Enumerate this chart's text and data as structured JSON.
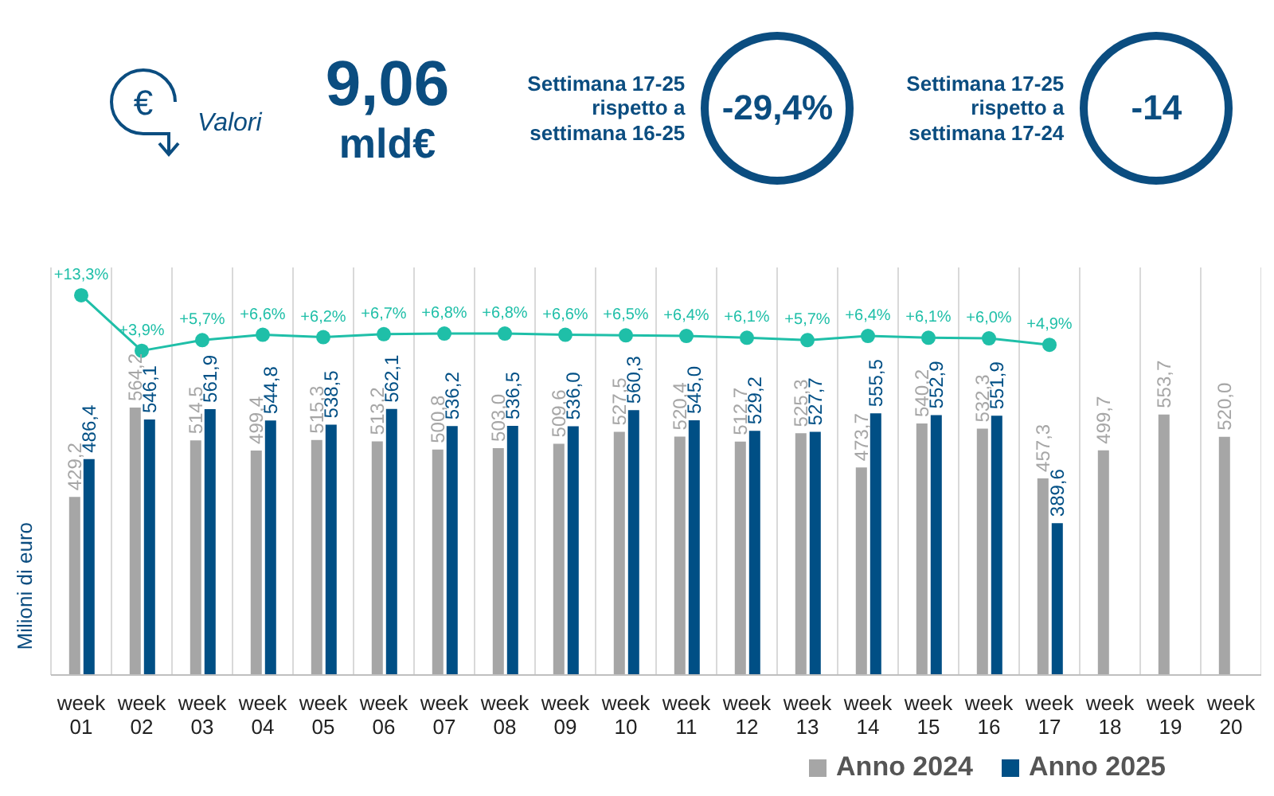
{
  "chart_data": {
    "type": "bar",
    "ylabel": "Milioni di euro",
    "annotations": [
      "Valori",
      "9,06",
      "mld€",
      "Settimana 17-25 rispetto a settimana 16-25",
      "-29,4%",
      "Settimana 17-25 rispetto a settimana 17-24",
      "-14",
      "€"
    ],
    "categories": [
      "week 01",
      "week 02",
      "week 03",
      "week 04",
      "week 05",
      "week 06",
      "week 07",
      "week 08",
      "week 09",
      "week 10",
      "week 11",
      "week 12",
      "week 13",
      "week 14",
      "week 15",
      "week 16",
      "week 17",
      "week 18",
      "week 19",
      "week 20"
    ],
    "series": [
      {
        "name": "Anno 2024",
        "color": "#a6a6a6",
        "values": [
          429.2,
          564.2,
          514.5,
          499.4,
          515.3,
          513.2,
          500.8,
          503.0,
          509.6,
          527.5,
          520.4,
          512.7,
          525.3,
          473.7,
          540.2,
          532.3,
          457.3,
          499.7,
          553.7,
          520.0
        ],
        "value_labels": [
          "429,2",
          "564,2",
          "514,5",
          "499,4",
          "515,3",
          "513,2",
          "500,8",
          "503,0",
          "509,6",
          "527,5",
          "520,4",
          "512,7",
          "525,3",
          "473,7",
          "540,2",
          "532,3",
          "457,3",
          "499,7",
          "553,7",
          "520,0"
        ]
      },
      {
        "name": "Anno 2025",
        "color": "#004f85",
        "values": [
          486.4,
          546.1,
          561.9,
          544.8,
          538.5,
          562.1,
          536.2,
          536.5,
          536.0,
          560.3,
          545.0,
          529.2,
          527.7,
          555.5,
          552.9,
          551.9,
          389.6,
          null,
          null,
          null
        ],
        "value_labels": [
          "486,4",
          "546,1",
          "561,9",
          "544,8",
          "538,5",
          "562,1",
          "536,2",
          "536,5",
          "536,0",
          "560,3",
          "545,0",
          "529,2",
          "527,7",
          "555,5",
          "552,9",
          "551,9",
          "389,6",
          null,
          null,
          null
        ]
      },
      {
        "type": "line",
        "axis": "y2",
        "color": "#1fbfa8",
        "values": [
          13.3,
          3.9,
          5.7,
          6.6,
          6.2,
          6.7,
          6.8,
          6.8,
          6.6,
          6.5,
          6.4,
          6.1,
          5.7,
          6.4,
          6.1,
          6.0,
          4.9,
          null,
          null,
          null
        ],
        "value_labels": [
          "+13,3%",
          "+3,9%",
          "+5,7%",
          "+6,6%",
          "+6,2%",
          "+6,7%",
          "+6,8%",
          "+6,8%",
          "+6,6%",
          "+6,5%",
          "+6,4%",
          "+6,1%",
          "+5,7%",
          "+6,4%",
          "+6,1%",
          "+6,0%",
          "+4,9%",
          null,
          null,
          null
        ]
      }
    ],
    "ylim": [
      160,
      776
    ],
    "y2lim": [
      -51,
      18
    ],
    "tick_labels": "x",
    "grid": "x",
    "legend": "bottom right",
    "marker": "circle",
    "line_style": "solid"
  }
}
